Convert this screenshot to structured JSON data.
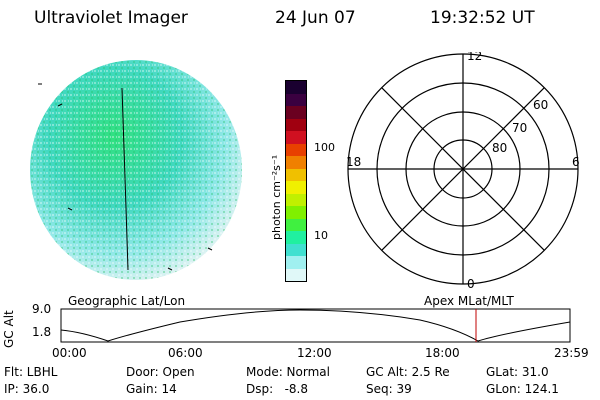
{
  "header": {
    "instrument": "Ultraviolet Imager",
    "date": "24 Jun 07",
    "time": "19:32:52 UT"
  },
  "colorbar": {
    "unit_label": "photon cm⁻²s⁻¹",
    "ticks": [
      "100",
      "10"
    ],
    "colors": [
      "#1a0030",
      "#3a0040",
      "#6a0020",
      "#a00010",
      "#d01020",
      "#e84000",
      "#f08000",
      "#f0c000",
      "#f0f000",
      "#c0f000",
      "#80f000",
      "#40f040",
      "#20f0a0",
      "#40e0d0",
      "#a0f0f0",
      "#e0f8f8"
    ]
  },
  "polar_plot": {
    "mlt_labels": {
      "top": "12",
      "left": "18",
      "right": "6",
      "bottom": "0"
    },
    "lat_labels": [
      "60",
      "70",
      "80"
    ]
  },
  "timeline": {
    "left_label": "Geographic Lat/Lon",
    "right_label": "Apex  MLat/MLT",
    "ylabel": "GC Alt",
    "yticks": [
      "9.0",
      "1.8"
    ],
    "xticks": [
      "00:00",
      "06:00",
      "12:00",
      "18:00",
      "23:59"
    ],
    "current_time_marker": "19:32:52"
  },
  "status": {
    "flt": "Flt: LBHL",
    "ip": "IP: 36.0",
    "door": "Door: Open",
    "gain": "Gain: 14",
    "mode": "Mode: Normal",
    "dsp": "Dsp:   -8.8",
    "gc_alt": "GC Alt: 2.5 Re",
    "seq": "Seq: 39",
    "glat": "GLat: 31.0",
    "glon": "GLon: 124.1"
  }
}
